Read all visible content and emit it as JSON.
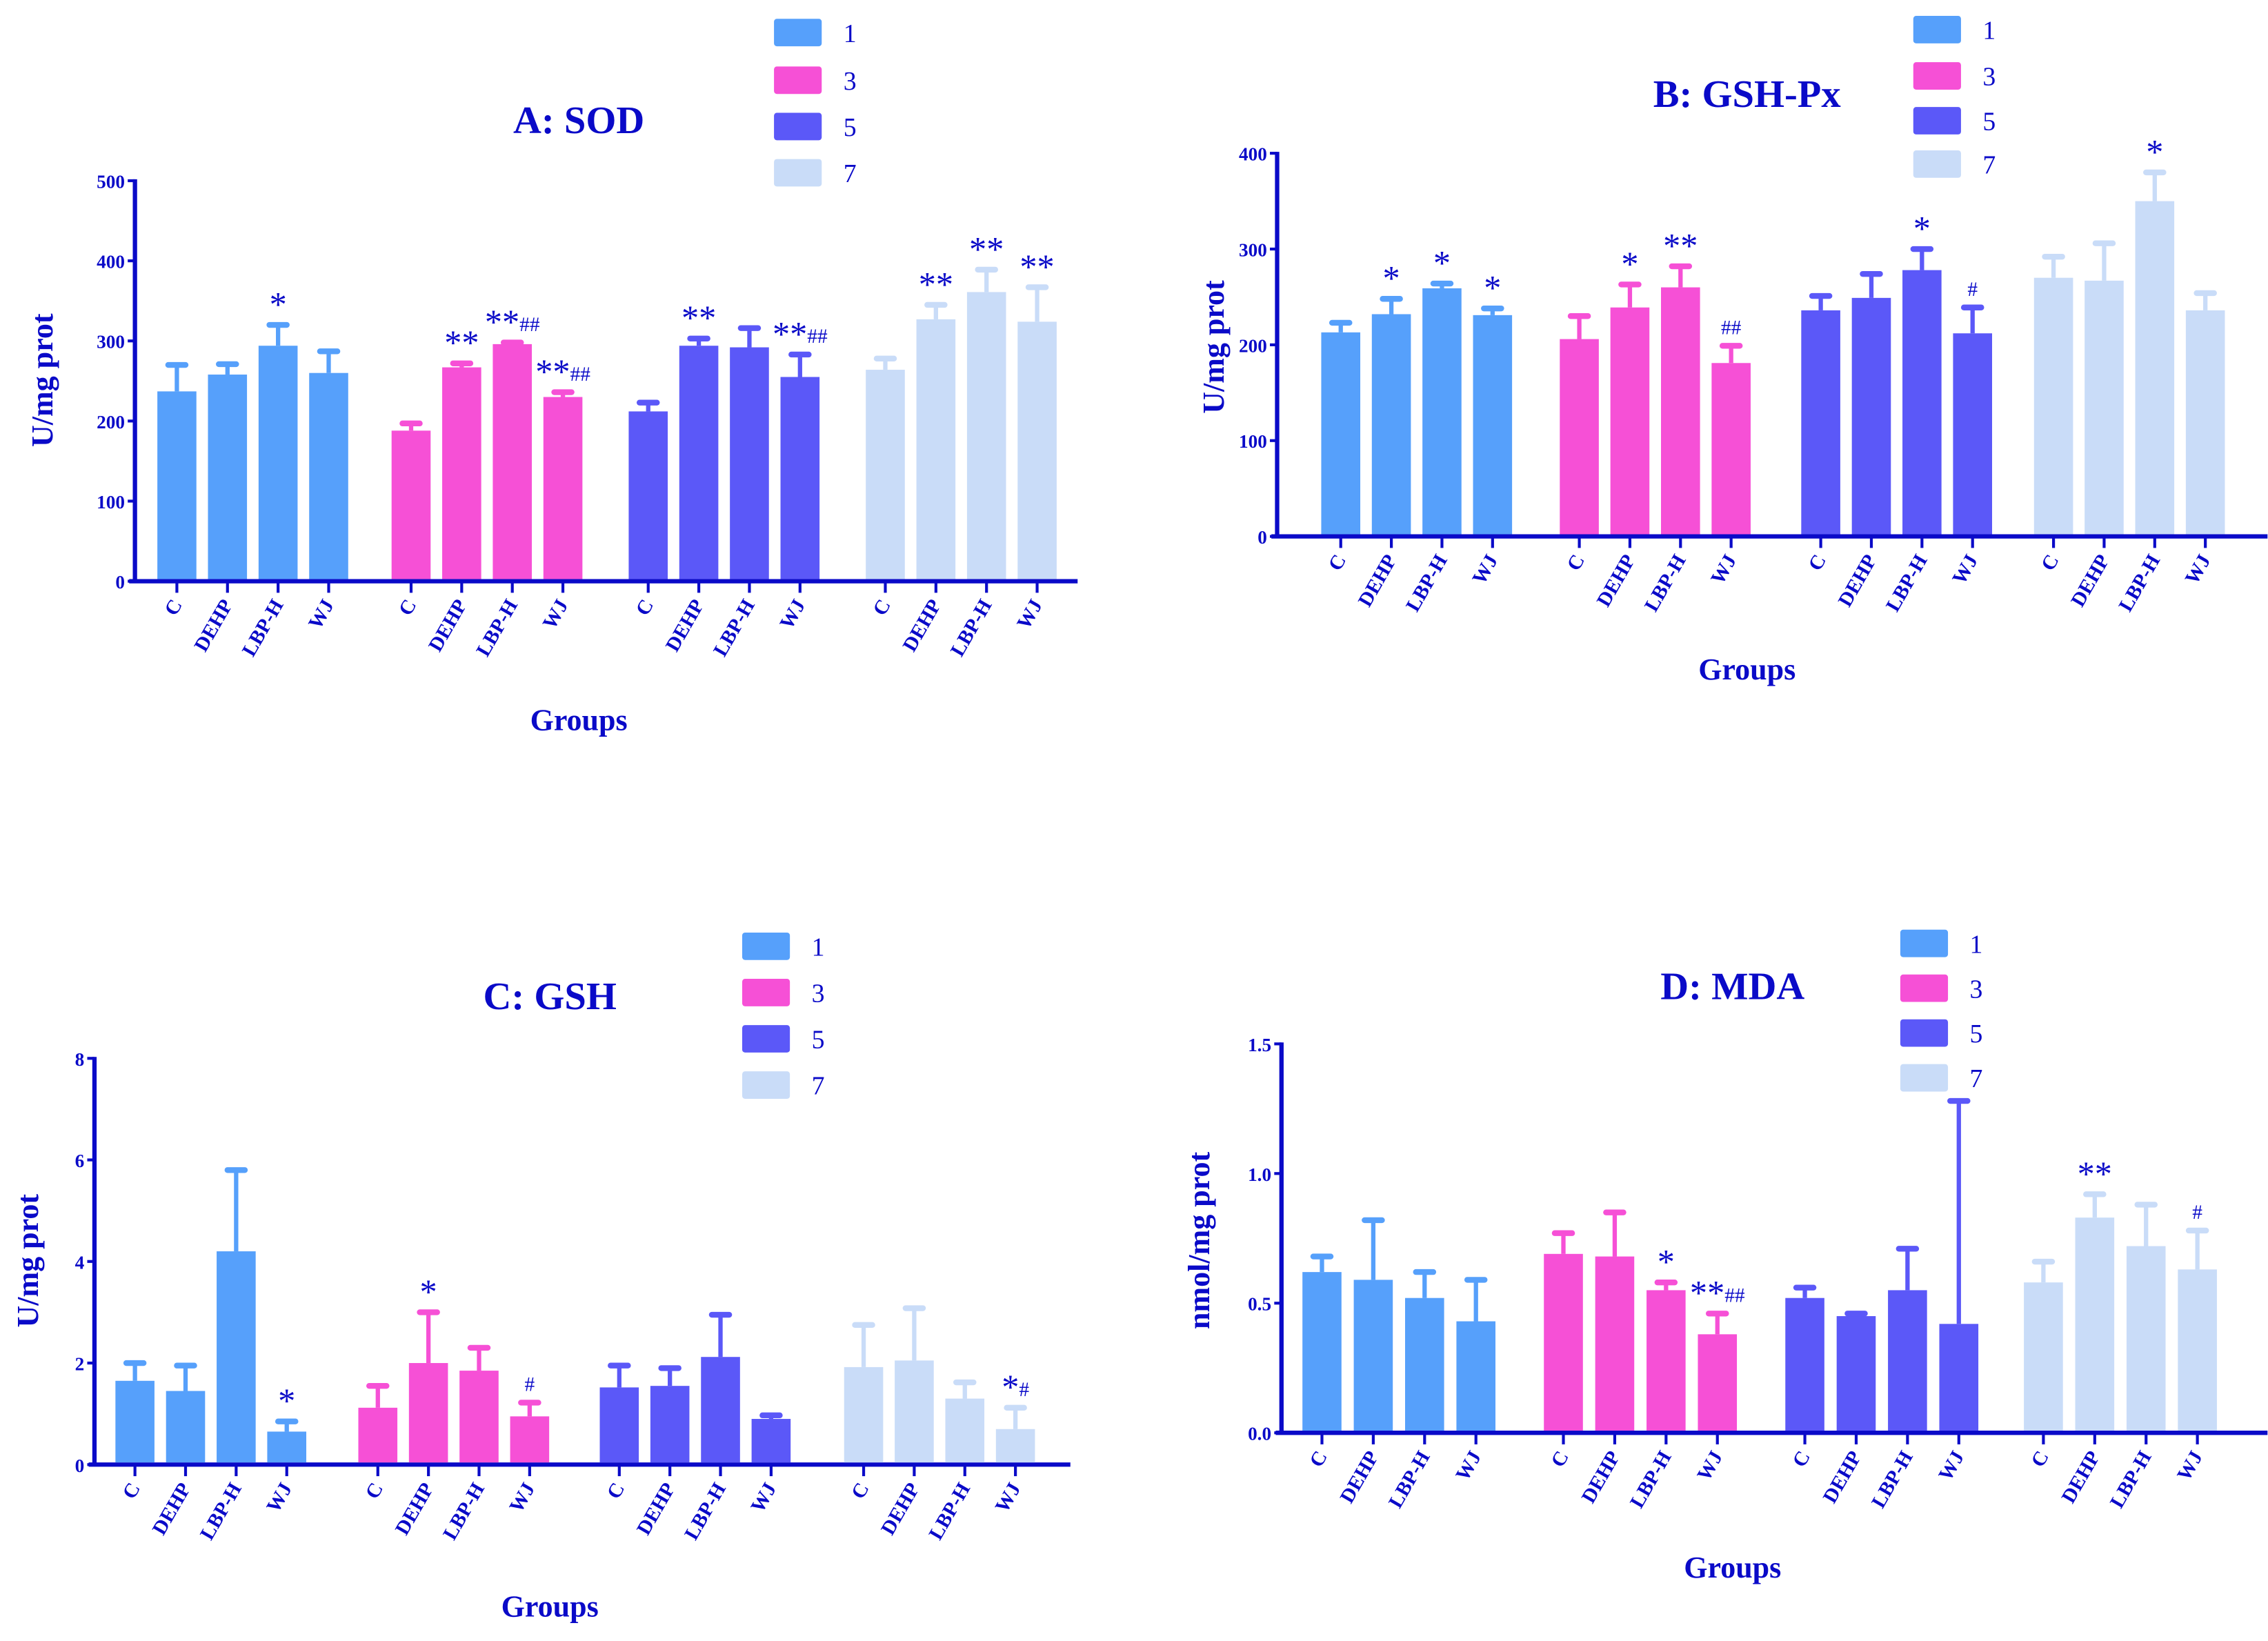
{
  "colors": {
    "1": "#56a0fb",
    "3": "#f650d6",
    "5": "#5b58f8",
    "7": "#c9dcf8",
    "axis": "#0a0ac8"
  },
  "chart_data": [
    {
      "type": "bar",
      "title": "A: SOD",
      "xlabel": "Groups",
      "ylabel": "U/mg prot",
      "ylim": [
        0,
        500
      ],
      "yticks": [
        "0",
        "100",
        "200",
        "300",
        "400",
        "500"
      ],
      "ytick_values": [
        0,
        100,
        200,
        300,
        400,
        500
      ],
      "legend": [
        "1",
        "3",
        "5",
        "7"
      ],
      "legend_position": "top-right",
      "categories": [
        "C",
        "DEHP",
        "LBP-H",
        "WJ"
      ],
      "series": [
        {
          "name": "1",
          "values": [
            237,
            258,
            294,
            260
          ],
          "error_top": [
            270,
            271,
            320,
            287
          ],
          "annotations": [
            "",
            "",
            "*",
            ""
          ]
        },
        {
          "name": "3",
          "values": [
            188,
            267,
            296,
            230
          ],
          "error_top": [
            197,
            272,
            298,
            236
          ],
          "annotations": [
            "",
            "**",
            "**##",
            "**##"
          ]
        },
        {
          "name": "5",
          "values": [
            212,
            294,
            292,
            255
          ],
          "error_top": [
            223,
            303,
            316,
            283
          ],
          "annotations": [
            "",
            "**",
            "",
            "**##"
          ]
        },
        {
          "name": "7",
          "values": [
            264,
            327,
            361,
            324
          ],
          "error_top": [
            278,
            345,
            389,
            367
          ],
          "annotations": [
            "",
            "**",
            "**",
            "**"
          ]
        }
      ]
    },
    {
      "type": "bar",
      "title": "B: GSH-Px",
      "xlabel": "Groups",
      "ylabel": "U/mg prot",
      "ylim": [
        0,
        400
      ],
      "yticks": [
        "0",
        "100",
        "200",
        "300",
        "400"
      ],
      "ytick_values": [
        0,
        100,
        200,
        300,
        400
      ],
      "legend": [
        "1",
        "3",
        "5",
        "7"
      ],
      "legend_position": "top-right",
      "categories": [
        "C",
        "DEHP",
        "LBP-H",
        "WJ"
      ],
      "series": [
        {
          "name": "1",
          "values": [
            213,
            232,
            259,
            231
          ],
          "error_top": [
            223,
            248,
            264,
            238
          ],
          "annotations": [
            "",
            "*",
            "*",
            "*"
          ]
        },
        {
          "name": "3",
          "values": [
            206,
            239,
            260,
            181
          ],
          "error_top": [
            230,
            263,
            282,
            199
          ],
          "annotations": [
            "",
            "*",
            "**",
            "##"
          ]
        },
        {
          "name": "5",
          "values": [
            236,
            249,
            278,
            212
          ],
          "error_top": [
            251,
            274,
            300,
            239
          ],
          "annotations": [
            "",
            "",
            "*",
            "#"
          ]
        },
        {
          "name": "7",
          "values": [
            270,
            267,
            350,
            236
          ],
          "error_top": [
            292,
            306,
            380,
            254
          ],
          "annotations": [
            "",
            "",
            "*",
            ""
          ]
        }
      ]
    },
    {
      "type": "bar",
      "title": "C: GSH",
      "xlabel": "Groups",
      "ylabel": "U/mg prot",
      "ylim": [
        0,
        8
      ],
      "yticks": [
        "0",
        "2",
        "4",
        "6",
        "8"
      ],
      "ytick_values": [
        0,
        2,
        4,
        6,
        8
      ],
      "legend": [
        "1",
        "3",
        "5",
        "7"
      ],
      "legend_position": "top-right",
      "categories": [
        "C",
        "DEHP",
        "LBP-H",
        "WJ"
      ],
      "series": [
        {
          "name": "1",
          "values": [
            1.65,
            1.45,
            4.2,
            0.65
          ],
          "error_top": [
            2.0,
            1.95,
            5.8,
            0.85
          ],
          "annotations": [
            "",
            "",
            "",
            "*"
          ]
        },
        {
          "name": "3",
          "values": [
            1.12,
            2.0,
            1.85,
            0.95
          ],
          "error_top": [
            1.55,
            3.0,
            2.3,
            1.22
          ],
          "annotations": [
            "",
            "*",
            "",
            "#"
          ]
        },
        {
          "name": "5",
          "values": [
            1.52,
            1.55,
            2.12,
            0.9
          ],
          "error_top": [
            1.95,
            1.9,
            2.95,
            0.97
          ],
          "annotations": [
            "",
            "",
            "",
            ""
          ]
        },
        {
          "name": "7",
          "values": [
            1.92,
            2.05,
            1.3,
            0.7
          ],
          "error_top": [
            2.75,
            3.08,
            1.62,
            1.12
          ],
          "annotations": [
            "",
            "",
            "",
            "*#"
          ]
        }
      ]
    },
    {
      "type": "bar",
      "title": "D: MDA",
      "xlabel": "Groups",
      "ylabel": "nmol/mg prot",
      "ylim": [
        0,
        1.5
      ],
      "yticks": [
        "0.0",
        "0.5",
        "1.0",
        "1.5"
      ],
      "ytick_values": [
        0,
        0.5,
        1.0,
        1.5
      ],
      "legend": [
        "1",
        "3",
        "5",
        "7"
      ],
      "legend_position": "top-right",
      "categories": [
        "C",
        "DEHP",
        "LBP-H",
        "WJ"
      ],
      "series": [
        {
          "name": "1",
          "values": [
            0.62,
            0.59,
            0.52,
            0.43
          ],
          "error_top": [
            0.68,
            0.82,
            0.62,
            0.59
          ],
          "annotations": [
            "",
            "",
            "",
            ""
          ]
        },
        {
          "name": "3",
          "values": [
            0.69,
            0.68,
            0.55,
            0.38
          ],
          "error_top": [
            0.77,
            0.85,
            0.58,
            0.46
          ],
          "annotations": [
            "",
            "",
            "*",
            "**##"
          ]
        },
        {
          "name": "5",
          "values": [
            0.52,
            0.45,
            0.55,
            0.42
          ],
          "error_top": [
            0.56,
            0.46,
            0.71,
            1.28
          ],
          "annotations": [
            "",
            "",
            "",
            ""
          ]
        },
        {
          "name": "7",
          "values": [
            0.58,
            0.83,
            0.72,
            0.63
          ],
          "error_top": [
            0.66,
            0.92,
            0.88,
            0.78
          ],
          "annotations": [
            "",
            "**",
            "",
            "#"
          ]
        }
      ]
    }
  ]
}
